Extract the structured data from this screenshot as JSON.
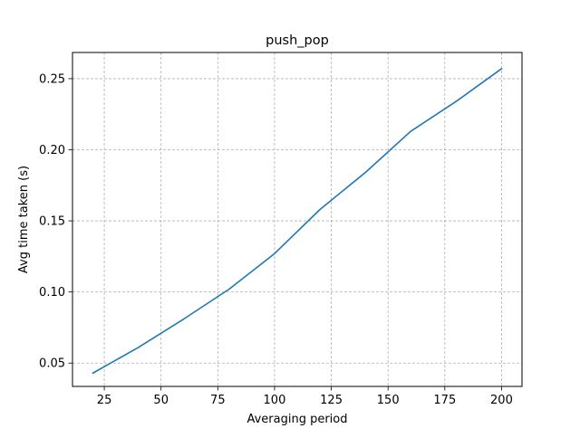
{
  "chart_data": {
    "type": "line",
    "title": "push_pop",
    "xlabel": "Averaging period",
    "ylabel": "Avg time taken (s)",
    "xlim": [
      11,
      209
    ],
    "ylim": [
      0.0336,
      0.2684
    ],
    "xticks": [
      25,
      50,
      75,
      100,
      125,
      150,
      175,
      200
    ],
    "yticks": [
      0.05,
      0.1,
      0.15,
      0.2,
      0.25
    ],
    "xtick_labels": [
      "25",
      "50",
      "75",
      "100",
      "125",
      "150",
      "175",
      "200"
    ],
    "ytick_labels": [
      "0.05",
      "0.10",
      "0.15",
      "0.20",
      "0.25"
    ],
    "grid": true,
    "series": [
      {
        "color": "#1f77b4",
        "x": [
          20,
          40,
          60,
          80,
          100,
          120,
          140,
          160,
          180,
          200
        ],
        "y": [
          0.043,
          0.061,
          0.081,
          0.102,
          0.127,
          0.158,
          0.184,
          0.213,
          0.234,
          0.257
        ]
      }
    ]
  }
}
